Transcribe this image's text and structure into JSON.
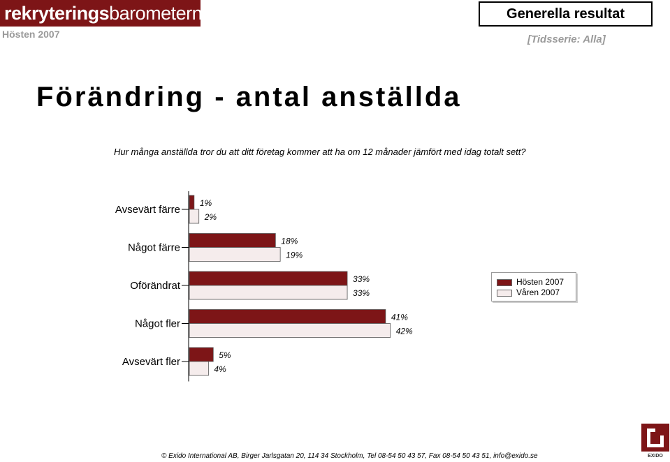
{
  "header": {
    "logo_main": "rekryterings",
    "logo_thin": "barometern",
    "season": "Hösten 2007",
    "section_title": "Generella resultat",
    "timeseries": "[Tidsserie: Alla]"
  },
  "title": "Förändring - antal anställda",
  "question": "Hur många anställda tror du att ditt företag kommer att ha om 12 månader jämfört med idag totalt sett?",
  "colors": {
    "hosten_2007": "#7d1517",
    "varen_2007": "#f5ecec"
  },
  "chart_data": {
    "type": "bar",
    "orientation": "horizontal",
    "categories": [
      "Avsevärt färre",
      "Något färre",
      "Oförändrat",
      "Något fler",
      "Avsevärt fler"
    ],
    "series": [
      {
        "name": "Hösten 2007",
        "values": [
          1,
          18,
          33,
          41,
          5
        ],
        "labels": [
          "1%",
          "18%",
          "33%",
          "41%",
          "5%"
        ]
      },
      {
        "name": "Våren 2007",
        "values": [
          2,
          19,
          33,
          42,
          4
        ],
        "labels": [
          "2%",
          "19%",
          "33%",
          "42%",
          "4%"
        ]
      }
    ],
    "xlim": [
      0,
      42
    ],
    "unit": "%",
    "legend_position": "right"
  },
  "legend": {
    "items": [
      "Hösten 2007",
      "Våren 2007"
    ]
  },
  "footer": {
    "text": "© Exido International AB, Birger Jarlsgatan 20, 114 34 Stockholm, Tel 08-54 50 43 57, Fax 08-54 50 43 51, info@exido.se",
    "logo_label": "EXIDO"
  }
}
